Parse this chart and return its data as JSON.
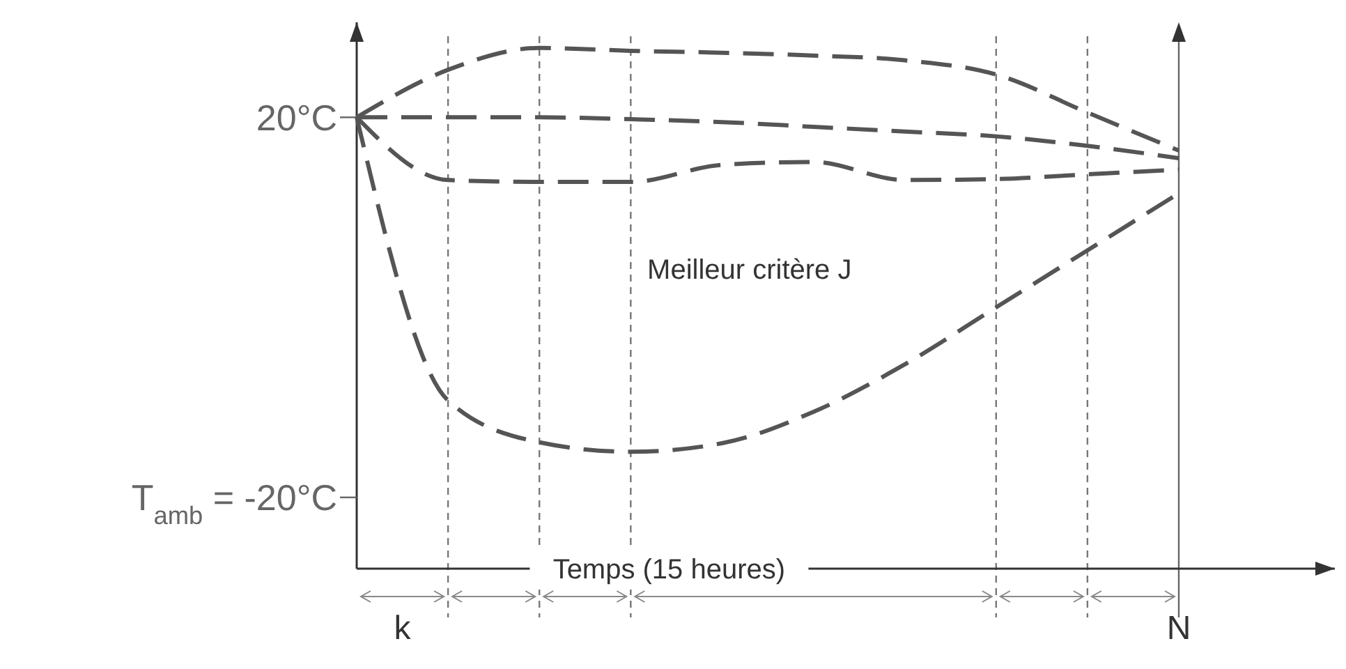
{
  "chart_data": {
    "type": "line",
    "xlabel": "Temps (15 heures)",
    "categories": [
      null,
      null,
      null,
      null,
      null,
      null,
      null,
      null,
      null,
      "N"
    ],
    "grid": "x",
    "ylim": [
      -27.5,
      30
    ],
    "yticks": [
      {
        "value": 20,
        "label": "20°C"
      },
      {
        "value": -20,
        "label": "T$_{amb}$ = -20°C"
      }
    ],
    "marker": "none",
    "line_style": "dashed",
    "series": [
      {
        "color": "#555555",
        "values": [
          20,
          25,
          27.3,
          27,
          26.8,
          26.5,
          26,
          24.5,
          20.5,
          16.5
        ]
      },
      {
        "color": "#555555",
        "values": [
          20,
          20,
          20,
          19.8,
          19.5,
          19,
          18.5,
          18,
          17,
          15.7
        ]
      },
      {
        "color": "#555555",
        "values": [
          20,
          13.4,
          13.2,
          13.2,
          15,
          15.3,
          13.4,
          13.5,
          14,
          14.5
        ]
      },
      {
        "color": "#555555",
        "values": [
          20,
          -9.8,
          -14.2,
          -15.2,
          -14.3,
          -11,
          -6,
          0,
          6,
          12
        ]
      }
    ],
    "annotations": [
      "Meilleur critère J",
      "k"
    ]
  }
}
